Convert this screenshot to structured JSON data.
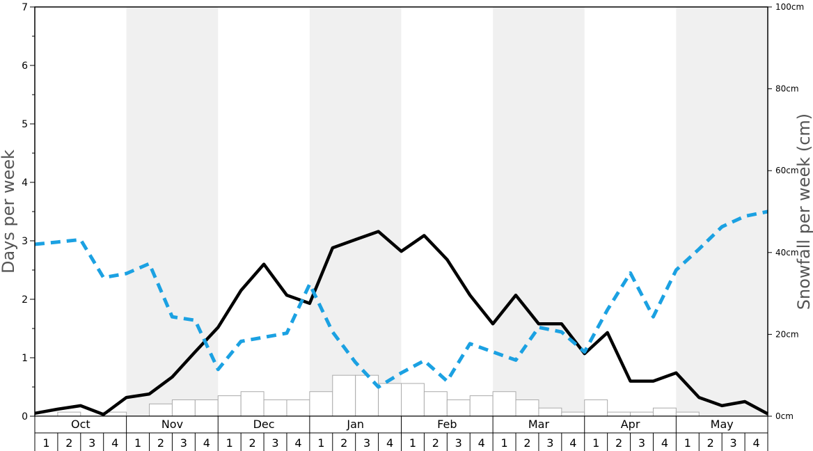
{
  "chart_data": {
    "type": "bar",
    "ylabel": "Days per week",
    "ylabel_right": "Snowfall per week (cm)",
    "ylim": [
      0,
      7
    ],
    "ylim_right": [
      0,
      100
    ],
    "y_ticks": [
      "0",
      "1",
      "2",
      "3",
      "4",
      "5",
      "6",
      "7"
    ],
    "y_right_ticks": [
      "0cm",
      "20cm",
      "40cm",
      "60cm",
      "80cm",
      "100cm"
    ],
    "months": [
      "Oct",
      "Nov",
      "Dec",
      "Jan",
      "Feb",
      "Mar",
      "Apr",
      "May"
    ],
    "weeks": [
      "1",
      "2",
      "3",
      "4"
    ],
    "grid": false,
    "shaded_months": [
      "Nov",
      "Jan",
      "Mar",
      "May"
    ],
    "colors": {
      "solid_line": "#000000",
      "dashed_line": "#1ba1e2",
      "bar_fill": "#ffffff",
      "bar_stroke": "#aaaaaa",
      "shade": "#f0f0f0"
    },
    "series": [
      {
        "type": "bar",
        "axis": "right",
        "values": [
          0,
          1,
          0,
          1,
          0,
          3,
          4,
          4,
          5,
          6,
          4,
          4,
          6,
          10,
          10,
          8,
          8,
          6,
          4,
          5,
          6,
          4,
          2,
          1,
          4,
          1,
          1,
          2,
          1,
          0,
          0,
          0
        ]
      },
      {
        "type": "line",
        "style": "solid",
        "axis": "left",
        "values": [
          0.05,
          0.12,
          0.18,
          0.03,
          0.32,
          0.38,
          0.67,
          1.1,
          1.52,
          2.15,
          2.6,
          2.07,
          1.93,
          2.88,
          3.02,
          3.16,
          2.82,
          3.09,
          2.68,
          2.07,
          1.58,
          2.07,
          1.58,
          1.58,
          1.07,
          1.43,
          0.6,
          0.6,
          0.74,
          0.32,
          0.18,
          0.25,
          0.04
        ]
      },
      {
        "type": "line",
        "style": "dashed",
        "axis": "left",
        "values": [
          2.94,
          2.98,
          3.02,
          2.37,
          2.44,
          2.61,
          1.7,
          1.64,
          0.8,
          1.28,
          1.35,
          1.42,
          2.26,
          1.44,
          0.92,
          0.5,
          0.74,
          0.95,
          0.6,
          1.24,
          1.1,
          0.96,
          1.52,
          1.44,
          1.1,
          1.82,
          2.45,
          1.7,
          2.5,
          2.86,
          3.24,
          3.42,
          3.5
        ]
      }
    ]
  }
}
